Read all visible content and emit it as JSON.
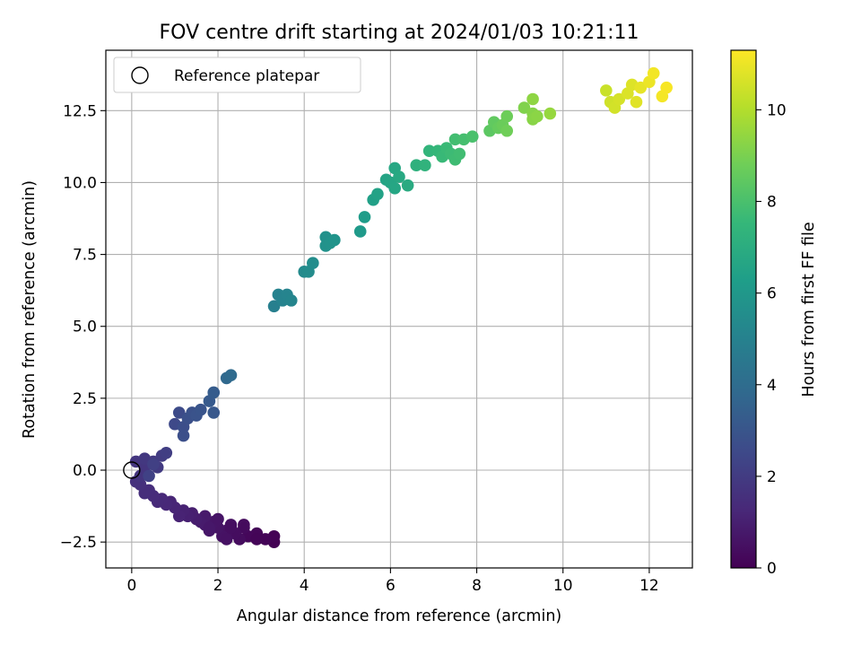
{
  "chart_data": {
    "type": "scatter",
    "title": "FOV centre drift starting at 2024/01/03 10:21:11",
    "xlabel": "Angular distance from reference (arcmin)",
    "ylabel": "Rotation from reference (arcmin)",
    "xlim": [
      -0.6,
      13.0
    ],
    "ylim": [
      -3.4,
      14.6
    ],
    "xticks": [
      0,
      2,
      4,
      6,
      8,
      10,
      12
    ],
    "yticks": [
      -2.5,
      0.0,
      2.5,
      5.0,
      7.5,
      10.0,
      12.5
    ],
    "ytick_labels": [
      "−2.5",
      "0.0",
      "2.5",
      "5.0",
      "7.5",
      "10.0",
      "12.5"
    ],
    "grid": true,
    "legend": {
      "placement": "top-left",
      "entries": [
        {
          "label": "Reference platepar",
          "marker": "open-circle"
        }
      ]
    },
    "reference_point": {
      "x": 0,
      "y": 0
    },
    "colorbar": {
      "label": "Hours from first FF file",
      "colormap": "viridis",
      "range": [
        0,
        11.3
      ],
      "ticks": [
        0,
        2,
        4,
        6,
        8,
        10
      ]
    },
    "colormap_stops": [
      "#440154",
      "#482878",
      "#3e4989",
      "#31688e",
      "#26828e",
      "#1f9e89",
      "#35b779",
      "#6ece58",
      "#b5de2b",
      "#fde725"
    ],
    "points": [
      {
        "x": 3.3,
        "y": -2.5,
        "h": 0.0
      },
      {
        "x": 3.3,
        "y": -2.3,
        "h": 0.05
      },
      {
        "x": 3.1,
        "y": -2.4,
        "h": 0.1
      },
      {
        "x": 2.9,
        "y": -2.2,
        "h": 0.15
      },
      {
        "x": 2.7,
        "y": -2.3,
        "h": 0.2
      },
      {
        "x": 2.6,
        "y": -2.0,
        "h": 0.3
      },
      {
        "x": 2.5,
        "y": -2.4,
        "h": 0.35
      },
      {
        "x": 2.4,
        "y": -2.2,
        "h": 0.4
      },
      {
        "x": 2.3,
        "y": -1.9,
        "h": 0.45
      },
      {
        "x": 2.2,
        "y": -2.1,
        "h": 0.5
      },
      {
        "x": 2.1,
        "y": -2.3,
        "h": 0.55
      },
      {
        "x": 2.0,
        "y": -2.0,
        "h": 0.6
      },
      {
        "x": 1.9,
        "y": -1.8,
        "h": 0.65
      },
      {
        "x": 1.8,
        "y": -2.1,
        "h": 0.7
      },
      {
        "x": 1.7,
        "y": -1.9,
        "h": 0.75
      },
      {
        "x": 1.7,
        "y": -1.6,
        "h": 0.8
      },
      {
        "x": 1.6,
        "y": -1.8,
        "h": 0.85
      },
      {
        "x": 1.5,
        "y": -1.7,
        "h": 0.9
      },
      {
        "x": 1.4,
        "y": -1.5,
        "h": 0.95
      },
      {
        "x": 1.3,
        "y": -1.6,
        "h": 1.0
      },
      {
        "x": 1.2,
        "y": -1.4,
        "h": 1.05
      },
      {
        "x": 1.1,
        "y": -1.6,
        "h": 1.1
      },
      {
        "x": 1.0,
        "y": -1.3,
        "h": 1.15
      },
      {
        "x": 0.9,
        "y": -1.1,
        "h": 1.2
      },
      {
        "x": 0.8,
        "y": -1.2,
        "h": 1.25
      },
      {
        "x": 0.7,
        "y": -1.0,
        "h": 1.3
      },
      {
        "x": 0.6,
        "y": -1.1,
        "h": 1.35
      },
      {
        "x": 0.5,
        "y": -0.9,
        "h": 1.4
      },
      {
        "x": 0.4,
        "y": -0.7,
        "h": 1.45
      },
      {
        "x": 0.3,
        "y": -0.8,
        "h": 1.5
      },
      {
        "x": 0.2,
        "y": -0.5,
        "h": 1.55
      },
      {
        "x": 0.1,
        "y": -0.4,
        "h": 1.6
      },
      {
        "x": 0.2,
        "y": -0.2,
        "h": 1.7
      },
      {
        "x": 0.3,
        "y": 0.1,
        "h": 1.75
      },
      {
        "x": 0.1,
        "y": 0.3,
        "h": 1.8
      },
      {
        "x": 0.3,
        "y": 0.4,
        "h": 1.85
      },
      {
        "x": 0.5,
        "y": 0.3,
        "h": 1.9
      },
      {
        "x": 0.6,
        "y": 0.1,
        "h": 1.95
      },
      {
        "x": 0.7,
        "y": 0.5,
        "h": 2.0
      },
      {
        "x": 0.8,
        "y": 0.6,
        "h": 2.1
      },
      {
        "x": 0.5,
        "y": 0.2,
        "h": 2.15
      },
      {
        "x": 0.4,
        "y": -0.2,
        "h": 2.2
      },
      {
        "x": 2.9,
        "y": -2.4,
        "h": 0.12
      },
      {
        "x": 2.3,
        "y": -2.0,
        "h": 0.42
      },
      {
        "x": 2.0,
        "y": -1.7,
        "h": 0.62
      },
      {
        "x": 1.8,
        "y": -2.0,
        "h": 0.72
      },
      {
        "x": 2.6,
        "y": -1.9,
        "h": 0.32
      },
      {
        "x": 2.2,
        "y": -2.4,
        "h": 0.52
      },
      {
        "x": 1.0,
        "y": 1.6,
        "h": 2.5
      },
      {
        "x": 1.1,
        "y": 2.0,
        "h": 2.6
      },
      {
        "x": 1.2,
        "y": 1.5,
        "h": 2.7
      },
      {
        "x": 1.2,
        "y": 1.2,
        "h": 2.75
      },
      {
        "x": 1.3,
        "y": 1.8,
        "h": 2.8
      },
      {
        "x": 1.4,
        "y": 2.0,
        "h": 2.85
      },
      {
        "x": 1.5,
        "y": 1.9,
        "h": 2.9
      },
      {
        "x": 1.6,
        "y": 2.1,
        "h": 2.95
      },
      {
        "x": 1.9,
        "y": 2.0,
        "h": 3.1
      },
      {
        "x": 1.8,
        "y": 2.4,
        "h": 3.2
      },
      {
        "x": 1.9,
        "y": 2.7,
        "h": 3.3
      },
      {
        "x": 2.2,
        "y": 3.2,
        "h": 3.8
      },
      {
        "x": 2.3,
        "y": 3.3,
        "h": 3.9
      },
      {
        "x": 3.3,
        "y": 5.7,
        "h": 4.9
      },
      {
        "x": 3.4,
        "y": 6.1,
        "h": 5.0
      },
      {
        "x": 3.5,
        "y": 5.9,
        "h": 5.05
      },
      {
        "x": 3.6,
        "y": 6.1,
        "h": 5.1
      },
      {
        "x": 3.7,
        "y": 5.9,
        "h": 5.15
      },
      {
        "x": 4.0,
        "y": 6.9,
        "h": 5.4
      },
      {
        "x": 4.1,
        "y": 6.9,
        "h": 5.45
      },
      {
        "x": 4.2,
        "y": 7.2,
        "h": 5.5
      },
      {
        "x": 4.5,
        "y": 8.1,
        "h": 5.7
      },
      {
        "x": 4.5,
        "y": 7.8,
        "h": 5.75
      },
      {
        "x": 4.6,
        "y": 7.9,
        "h": 5.8
      },
      {
        "x": 4.7,
        "y": 8.0,
        "h": 5.85
      },
      {
        "x": 5.3,
        "y": 8.3,
        "h": 6.1
      },
      {
        "x": 5.4,
        "y": 8.8,
        "h": 6.2
      },
      {
        "x": 5.6,
        "y": 9.4,
        "h": 6.4
      },
      {
        "x": 5.7,
        "y": 9.6,
        "h": 6.5
      },
      {
        "x": 5.9,
        "y": 10.1,
        "h": 6.6
      },
      {
        "x": 6.0,
        "y": 10.0,
        "h": 6.65
      },
      {
        "x": 6.1,
        "y": 9.8,
        "h": 6.7
      },
      {
        "x": 6.1,
        "y": 10.5,
        "h": 6.75
      },
      {
        "x": 6.2,
        "y": 10.2,
        "h": 6.8
      },
      {
        "x": 6.4,
        "y": 9.9,
        "h": 6.9
      },
      {
        "x": 6.6,
        "y": 10.6,
        "h": 7.2
      },
      {
        "x": 6.8,
        "y": 10.6,
        "h": 7.3
      },
      {
        "x": 6.9,
        "y": 11.1,
        "h": 7.4
      },
      {
        "x": 7.1,
        "y": 11.1,
        "h": 7.5
      },
      {
        "x": 7.2,
        "y": 10.9,
        "h": 7.6
      },
      {
        "x": 7.3,
        "y": 11.2,
        "h": 7.65
      },
      {
        "x": 7.4,
        "y": 11.0,
        "h": 7.7
      },
      {
        "x": 7.5,
        "y": 10.8,
        "h": 7.75
      },
      {
        "x": 7.6,
        "y": 11.0,
        "h": 7.8
      },
      {
        "x": 7.5,
        "y": 11.5,
        "h": 7.85
      },
      {
        "x": 7.7,
        "y": 11.5,
        "h": 7.9
      },
      {
        "x": 7.9,
        "y": 11.6,
        "h": 8.0
      },
      {
        "x": 8.3,
        "y": 11.8,
        "h": 8.4
      },
      {
        "x": 8.4,
        "y": 12.1,
        "h": 8.5
      },
      {
        "x": 8.5,
        "y": 11.9,
        "h": 8.6
      },
      {
        "x": 8.6,
        "y": 12.0,
        "h": 8.7
      },
      {
        "x": 8.7,
        "y": 12.3,
        "h": 8.75
      },
      {
        "x": 8.7,
        "y": 11.8,
        "h": 8.8
      },
      {
        "x": 9.1,
        "y": 12.6,
        "h": 9.1
      },
      {
        "x": 9.3,
        "y": 12.4,
        "h": 9.2
      },
      {
        "x": 9.3,
        "y": 12.2,
        "h": 9.25
      },
      {
        "x": 9.4,
        "y": 12.3,
        "h": 9.3
      },
      {
        "x": 9.3,
        "y": 12.9,
        "h": 9.35
      },
      {
        "x": 9.7,
        "y": 12.4,
        "h": 9.5
      },
      {
        "x": 11.0,
        "y": 13.2,
        "h": 10.4
      },
      {
        "x": 11.1,
        "y": 12.8,
        "h": 10.5
      },
      {
        "x": 11.2,
        "y": 12.6,
        "h": 10.55
      },
      {
        "x": 11.3,
        "y": 12.9,
        "h": 10.6
      },
      {
        "x": 11.5,
        "y": 13.1,
        "h": 10.7
      },
      {
        "x": 11.6,
        "y": 13.4,
        "h": 10.75
      },
      {
        "x": 11.7,
        "y": 12.8,
        "h": 10.8
      },
      {
        "x": 11.8,
        "y": 13.3,
        "h": 10.9
      },
      {
        "x": 12.0,
        "y": 13.5,
        "h": 11.0
      },
      {
        "x": 12.1,
        "y": 13.8,
        "h": 11.1
      },
      {
        "x": 12.3,
        "y": 13.0,
        "h": 11.15
      },
      {
        "x": 12.4,
        "y": 13.3,
        "h": 11.2
      }
    ]
  }
}
